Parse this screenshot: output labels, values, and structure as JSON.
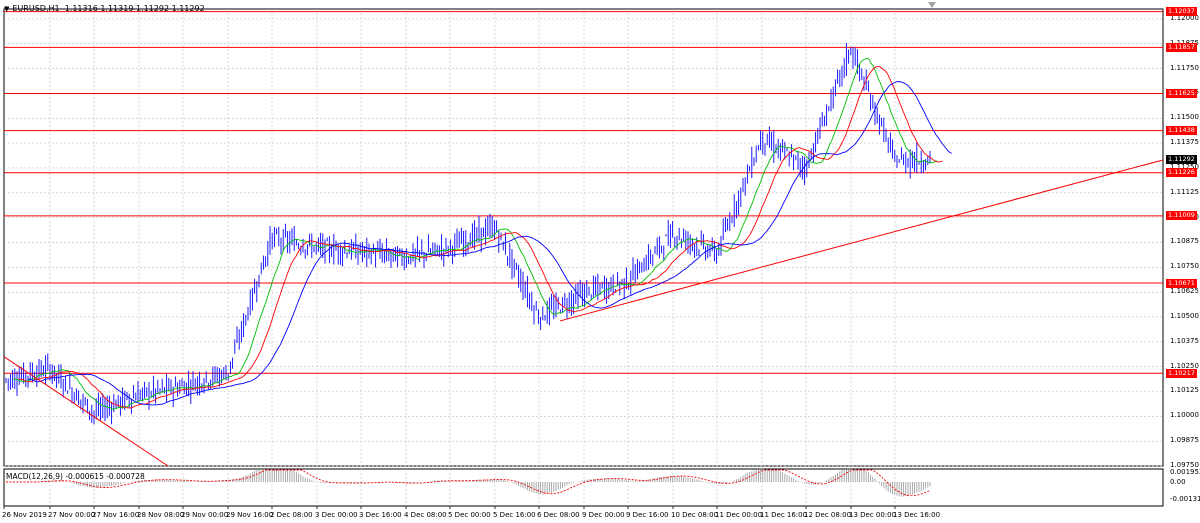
{
  "title": {
    "symbol": "EURUSD,H1",
    "ohlc": "1.11316 1.11319 1.11292 1.11292"
  },
  "indicator": {
    "label": "MACD(12,26,9) -0.000615 -0.000728",
    "axis_labels": [
      "0.001953",
      "0.00",
      "-0.001318"
    ]
  },
  "price_axis": {
    "labels": [
      "1.12000",
      "1.11875",
      "1.11750",
      "1.11625",
      "1.11500",
      "1.11375",
      "1.11250",
      "1.11125",
      "1.11000",
      "1.10875",
      "1.10750",
      "1.10625",
      "1.10500",
      "1.10375",
      "1.10250",
      "1.10125",
      "1.10000",
      "1.09875",
      "1.09750"
    ]
  },
  "current_price": "1.11292",
  "level_tags": [
    "1.12037",
    "1.11857",
    "1.11625",
    "1.11438",
    "1.11226",
    "1.11009",
    "1.10671",
    "1.10217"
  ],
  "time_axis": {
    "labels": [
      "26 Nov 2019",
      "27 Nov 00:00",
      "27 Nov 16:00",
      "28 Nov 08:00",
      "29 Nov 00:00",
      "29 Nov 16:00",
      "2 Dec 08:00",
      "3 Dec 00:00",
      "3 Dec 16:00",
      "4 Dec 08:00",
      "5 Dec 00:00",
      "5 Dec 16:00",
      "6 Dec 08:00",
      "9 Dec 00:00",
      "9 Dec 16:00",
      "10 Dec 08:00",
      "11 Dec 00:00",
      "11 Dec 16:00",
      "12 Dec 08:00",
      "13 Dec 00:00",
      "13 Dec 16:00"
    ]
  },
  "colors": {
    "candles": "#0000ff",
    "ma_fast": "#00c000",
    "ma_mid": "#ff0000",
    "ma_slow": "#0000ff",
    "levels": "#ff0000",
    "grid": "#c0c0c0",
    "macd_hist": "#a0a0a0",
    "macd_signal": "#ff0000"
  },
  "chart_data": {
    "type": "line",
    "symbol": "EURUSD",
    "timeframe": "H1",
    "ylim": [
      1.0975,
      1.1205
    ],
    "horizontal_levels": [
      1.12037,
      1.11857,
      1.11625,
      1.11438,
      1.11226,
      1.11009,
      1.10671,
      1.10217
    ],
    "trendline": {
      "from": {
        "x": "6 Dec 08:00",
        "y": 1.1048
      },
      "to": {
        "x": "13 Dec 16:00",
        "y": 1.1125
      }
    },
    "price_series": [
      {
        "x": "26 Nov 2019",
        "y": 1.1018
      },
      {
        "x": "27 Nov 00:00",
        "y": 1.1024
      },
      {
        "x": "27 Nov 16:00",
        "y": 1.1002
      },
      {
        "x": "28 Nov 08:00",
        "y": 1.1011
      },
      {
        "x": "29 Nov 00:00",
        "y": 1.1015
      },
      {
        "x": "29 Nov 16:00",
        "y": 1.1022
      },
      {
        "x": "2 Dec 08:00",
        "y": 1.109
      },
      {
        "x": "3 Dec 00:00",
        "y": 1.1085
      },
      {
        "x": "3 Dec 16:00",
        "y": 1.1083
      },
      {
        "x": "4 Dec 08:00",
        "y": 1.108
      },
      {
        "x": "5 Dec 00:00",
        "y": 1.1085
      },
      {
        "x": "5 Dec 16:00",
        "y": 1.1095
      },
      {
        "x": "6 Dec 08:00",
        "y": 1.105
      },
      {
        "x": "9 Dec 00:00",
        "y": 1.1062
      },
      {
        "x": "9 Dec 16:00",
        "y": 1.1068
      },
      {
        "x": "10 Dec 08:00",
        "y": 1.1092
      },
      {
        "x": "11 Dec 00:00",
        "y": 1.1082
      },
      {
        "x": "11 Dec 16:00",
        "y": 1.114
      },
      {
        "x": "12 Dec 08:00",
        "y": 1.1125
      },
      {
        "x": "13 Dec 00:00",
        "y": 1.1185
      },
      {
        "x": "13 Dec 16:00",
        "y": 1.1129
      }
    ]
  }
}
